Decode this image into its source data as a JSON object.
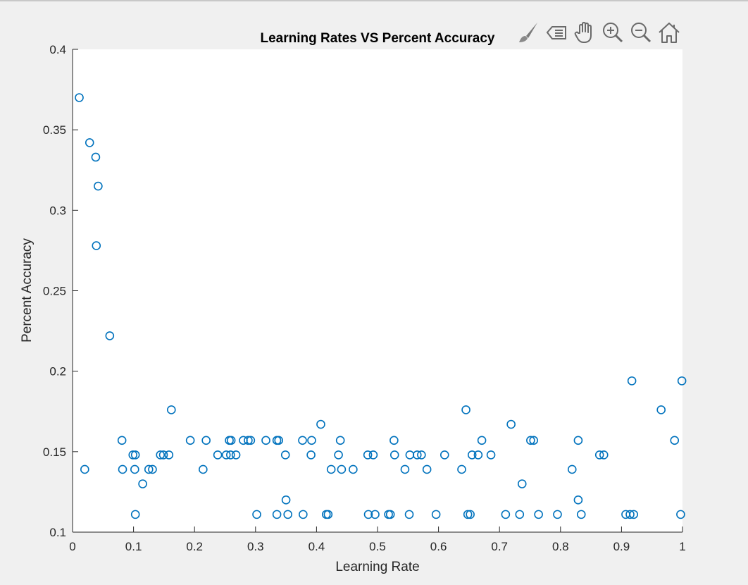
{
  "toolbar": {
    "icons": [
      "brush-icon",
      "data-tips-icon",
      "pan-hand-icon",
      "zoom-in-icon",
      "zoom-out-icon",
      "home-icon"
    ]
  },
  "chart_data": {
    "type": "scatter",
    "title": "Learning Rates VS Percent Accuracy",
    "xlabel": "Learning Rate",
    "ylabel": "Percent Accuracy",
    "xlim": [
      0,
      1
    ],
    "ylim": [
      0.1,
      0.4
    ],
    "xticks": [
      "0",
      "0.1",
      "0.2",
      "0.3",
      "0.4",
      "0.5",
      "0.6",
      "0.7",
      "0.8",
      "0.9",
      "1"
    ],
    "yticks": [
      "0.1",
      "0.15",
      "0.2",
      "0.25",
      "0.3",
      "0.35",
      "0.4"
    ],
    "grid": false,
    "marker_color": "#0072bd",
    "series": [
      {
        "marker": "o",
        "points": [
          [
            0.011,
            0.37
          ],
          [
            0.02,
            0.139
          ],
          [
            0.028,
            0.342
          ],
          [
            0.038,
            0.333
          ],
          [
            0.042,
            0.315
          ],
          [
            0.039,
            0.278
          ],
          [
            0.061,
            0.222
          ],
          [
            0.081,
            0.157
          ],
          [
            0.082,
            0.139
          ],
          [
            0.099,
            0.148
          ],
          [
            0.103,
            0.148
          ],
          [
            0.102,
            0.139
          ],
          [
            0.103,
            0.111
          ],
          [
            0.115,
            0.13
          ],
          [
            0.125,
            0.139
          ],
          [
            0.131,
            0.139
          ],
          [
            0.144,
            0.148
          ],
          [
            0.149,
            0.148
          ],
          [
            0.158,
            0.148
          ],
          [
            0.162,
            0.176
          ],
          [
            0.193,
            0.157
          ],
          [
            0.214,
            0.139
          ],
          [
            0.219,
            0.157
          ],
          [
            0.238,
            0.148
          ],
          [
            0.252,
            0.148
          ],
          [
            0.257,
            0.157
          ],
          [
            0.259,
            0.148
          ],
          [
            0.26,
            0.157
          ],
          [
            0.268,
            0.148
          ],
          [
            0.28,
            0.157
          ],
          [
            0.288,
            0.157
          ],
          [
            0.292,
            0.157
          ],
          [
            0.302,
            0.111
          ],
          [
            0.317,
            0.157
          ],
          [
            0.335,
            0.157
          ],
          [
            0.338,
            0.157
          ],
          [
            0.335,
            0.111
          ],
          [
            0.349,
            0.148
          ],
          [
            0.35,
            0.12
          ],
          [
            0.353,
            0.111
          ],
          [
            0.377,
            0.157
          ],
          [
            0.378,
            0.111
          ],
          [
            0.391,
            0.148
          ],
          [
            0.392,
            0.157
          ],
          [
            0.407,
            0.167
          ],
          [
            0.416,
            0.111
          ],
          [
            0.419,
            0.111
          ],
          [
            0.424,
            0.139
          ],
          [
            0.436,
            0.148
          ],
          [
            0.439,
            0.157
          ],
          [
            0.441,
            0.139
          ],
          [
            0.46,
            0.139
          ],
          [
            0.484,
            0.148
          ],
          [
            0.485,
            0.111
          ],
          [
            0.493,
            0.148
          ],
          [
            0.496,
            0.111
          ],
          [
            0.518,
            0.111
          ],
          [
            0.521,
            0.111
          ],
          [
            0.527,
            0.157
          ],
          [
            0.528,
            0.148
          ],
          [
            0.545,
            0.139
          ],
          [
            0.552,
            0.111
          ],
          [
            0.553,
            0.148
          ],
          [
            0.565,
            0.148
          ],
          [
            0.572,
            0.148
          ],
          [
            0.581,
            0.139
          ],
          [
            0.596,
            0.111
          ],
          [
            0.61,
            0.148
          ],
          [
            0.638,
            0.139
          ],
          [
            0.645,
            0.176
          ],
          [
            0.648,
            0.111
          ],
          [
            0.652,
            0.111
          ],
          [
            0.655,
            0.148
          ],
          [
            0.665,
            0.148
          ],
          [
            0.671,
            0.157
          ],
          [
            0.686,
            0.148
          ],
          [
            0.71,
            0.111
          ],
          [
            0.719,
            0.167
          ],
          [
            0.733,
            0.111
          ],
          [
            0.737,
            0.13
          ],
          [
            0.751,
            0.157
          ],
          [
            0.756,
            0.157
          ],
          [
            0.764,
            0.111
          ],
          [
            0.795,
            0.111
          ],
          [
            0.819,
            0.139
          ],
          [
            0.829,
            0.157
          ],
          [
            0.829,
            0.12
          ],
          [
            0.834,
            0.111
          ],
          [
            0.864,
            0.148
          ],
          [
            0.871,
            0.148
          ],
          [
            0.907,
            0.111
          ],
          [
            0.914,
            0.111
          ],
          [
            0.92,
            0.111
          ],
          [
            0.917,
            0.194
          ],
          [
            0.965,
            0.176
          ],
          [
            0.987,
            0.157
          ],
          [
            0.997,
            0.111
          ],
          [
            0.999,
            0.194
          ]
        ]
      }
    ]
  }
}
